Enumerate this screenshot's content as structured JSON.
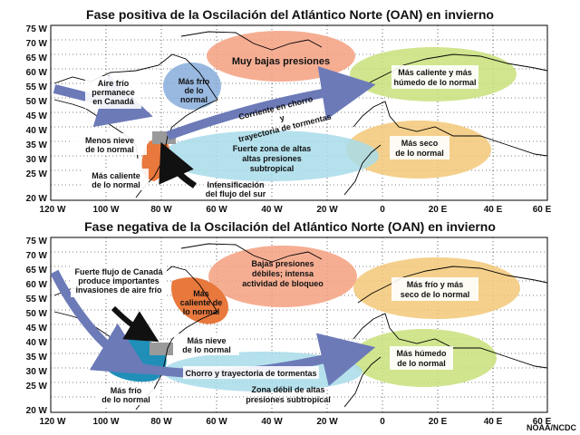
{
  "panel_top": {
    "title": "Fase positiva de la Oscilación del Atlántico Norte (OAN) en invierno",
    "labels": {
      "very_low_pressure": "Muy bajas presiones",
      "cold_air_canada": [
        "Aire frío",
        "permanece",
        "en Canadá"
      ],
      "colder_normal": [
        "Más frío",
        "de lo",
        "normal"
      ],
      "jet_stream": [
        "Corriente en chorro",
        "y",
        "trayectoria de tormentas"
      ],
      "warmer_wetter": [
        "Más caliente y más",
        "húmedo de lo normal"
      ],
      "less_snow": [
        "Menos nieve",
        "de lo normal"
      ],
      "warmer_than_normal": [
        "Más caliente",
        "de lo normal"
      ],
      "strong_high": [
        "Fuerte zona de altas",
        "altas presiones",
        "subtropical"
      ],
      "drier": [
        "Más seco",
        "de lo normal"
      ],
      "south_flow": [
        "Intensificación",
        "del flujo del sur"
      ]
    }
  },
  "panel_bottom": {
    "title": "Fase negativa de la Oscilación del Atlántico Norte (OAN) en invierno",
    "labels": {
      "low_pressure": [
        "Bajas presiones",
        "débiles; intensa",
        "actividad de bloqueo"
      ],
      "canada_flow": [
        "Fuerte flujo de Canadá",
        "produce importantes",
        "invasiones de aire frío"
      ],
      "warmer_than_normal": [
        "Más",
        "caliente de",
        "lo normal"
      ],
      "colder_drier": [
        "Más frío y más",
        "seco de lo normal"
      ],
      "more_snow": [
        "Más nieve",
        "de lo normal"
      ],
      "jet_stream": "Chorro y trayectoria de tormentas",
      "wetter": [
        "Más húmedo",
        "de lo normal"
      ],
      "colder_than_normal": [
        "Más frío",
        "de lo normal"
      ],
      "weak_high": [
        "Zona débil de altas",
        "presiones subtropical"
      ]
    }
  },
  "y_axis": [
    "75 W",
    "70 W",
    "65 W",
    "60 W",
    "55 W",
    "50 W",
    "45 W",
    "40 W",
    "35 W",
    "30 W",
    "25 W",
    "20 W"
  ],
  "x_axis": [
    "120 W",
    "100 W",
    "80 W",
    "60 W",
    "40 W",
    "20 W",
    "0",
    "20 E",
    "40 E",
    "60 E"
  ],
  "credit": "NOAA/NCDC",
  "colors": {
    "low_pressure": "#f4a080",
    "cold": "#7fa8d8",
    "warm_wet": "#c8e07a",
    "dry": "#f2c878",
    "high_pressure": "#a8dcea",
    "arrow": "#6c7ab8",
    "warm": "#e8783c",
    "snow": "#9a9a9a",
    "cold_region": "#1f8fb8"
  }
}
